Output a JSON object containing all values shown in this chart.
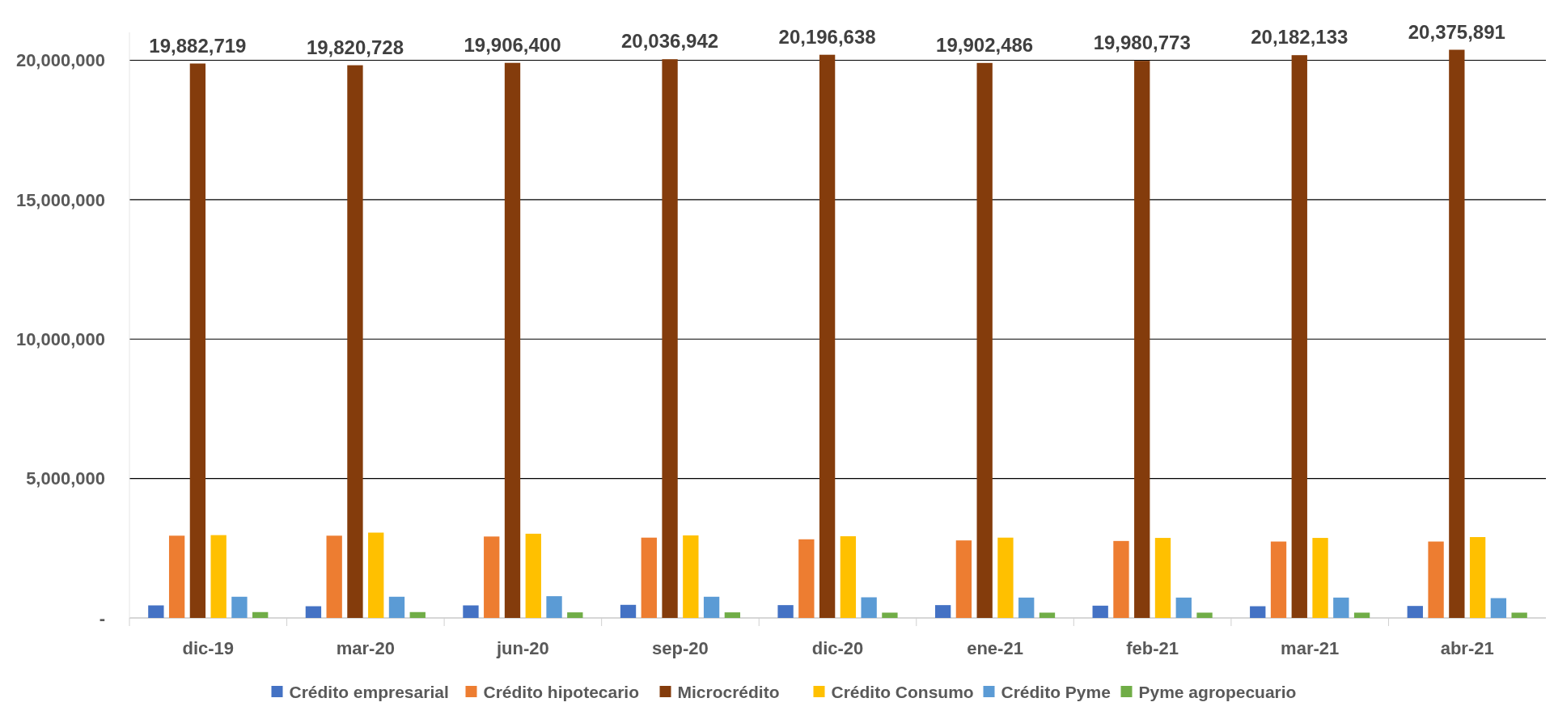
{
  "chart_data": {
    "type": "bar",
    "categories": [
      "dic-19",
      "mar-20",
      "jun-20",
      "sep-20",
      "dic-20",
      "ene-21",
      "feb-21",
      "mar-21",
      "abr-21"
    ],
    "series": [
      {
        "name": "Crédito empresarial",
        "color": "#4472c4",
        "values": [
          450000,
          420000,
          450000,
          470000,
          460000,
          460000,
          440000,
          420000,
          430000
        ]
      },
      {
        "name": "Crédito hipotecario",
        "color": "#ed7d31",
        "values": [
          2950000,
          2950000,
          2920000,
          2880000,
          2820000,
          2780000,
          2760000,
          2740000,
          2740000
        ]
      },
      {
        "name": "Microcrédito",
        "color": "#843c0c",
        "values": [
          19882719,
          19820728,
          19906400,
          20036942,
          20196638,
          19902486,
          19980773,
          20182133,
          20375891
        ],
        "value_labels": [
          "19,882,719",
          "19,820,728",
          "19,906,400",
          "20,036,942",
          "20,196,638",
          "19,902,486",
          "19,980,773",
          "20,182,133",
          "20,375,891"
        ]
      },
      {
        "name": "Crédito Consumo",
        "color": "#ffc000",
        "values": [
          2970000,
          3060000,
          3020000,
          2960000,
          2930000,
          2880000,
          2870000,
          2870000,
          2900000
        ]
      },
      {
        "name": "Crédito Pyme",
        "color": "#5b9bd5",
        "values": [
          760000,
          760000,
          780000,
          760000,
          740000,
          730000,
          730000,
          730000,
          710000
        ]
      },
      {
        "name": "Pyme agropecuario",
        "color": "#70ad47",
        "values": [
          210000,
          210000,
          200000,
          200000,
          190000,
          190000,
          190000,
          190000,
          190000
        ]
      }
    ],
    "ylim": [
      0,
      21000000
    ],
    "yticks": [
      {
        "value": 0,
        "label": "-"
      },
      {
        "value": 5000000,
        "label": "5,000,000"
      },
      {
        "value": 10000000,
        "label": "10,000,000"
      },
      {
        "value": 15000000,
        "label": "15,000,000"
      },
      {
        "value": 20000000,
        "label": "20,000,000"
      }
    ],
    "grid": "y",
    "legend": "bottom"
  }
}
